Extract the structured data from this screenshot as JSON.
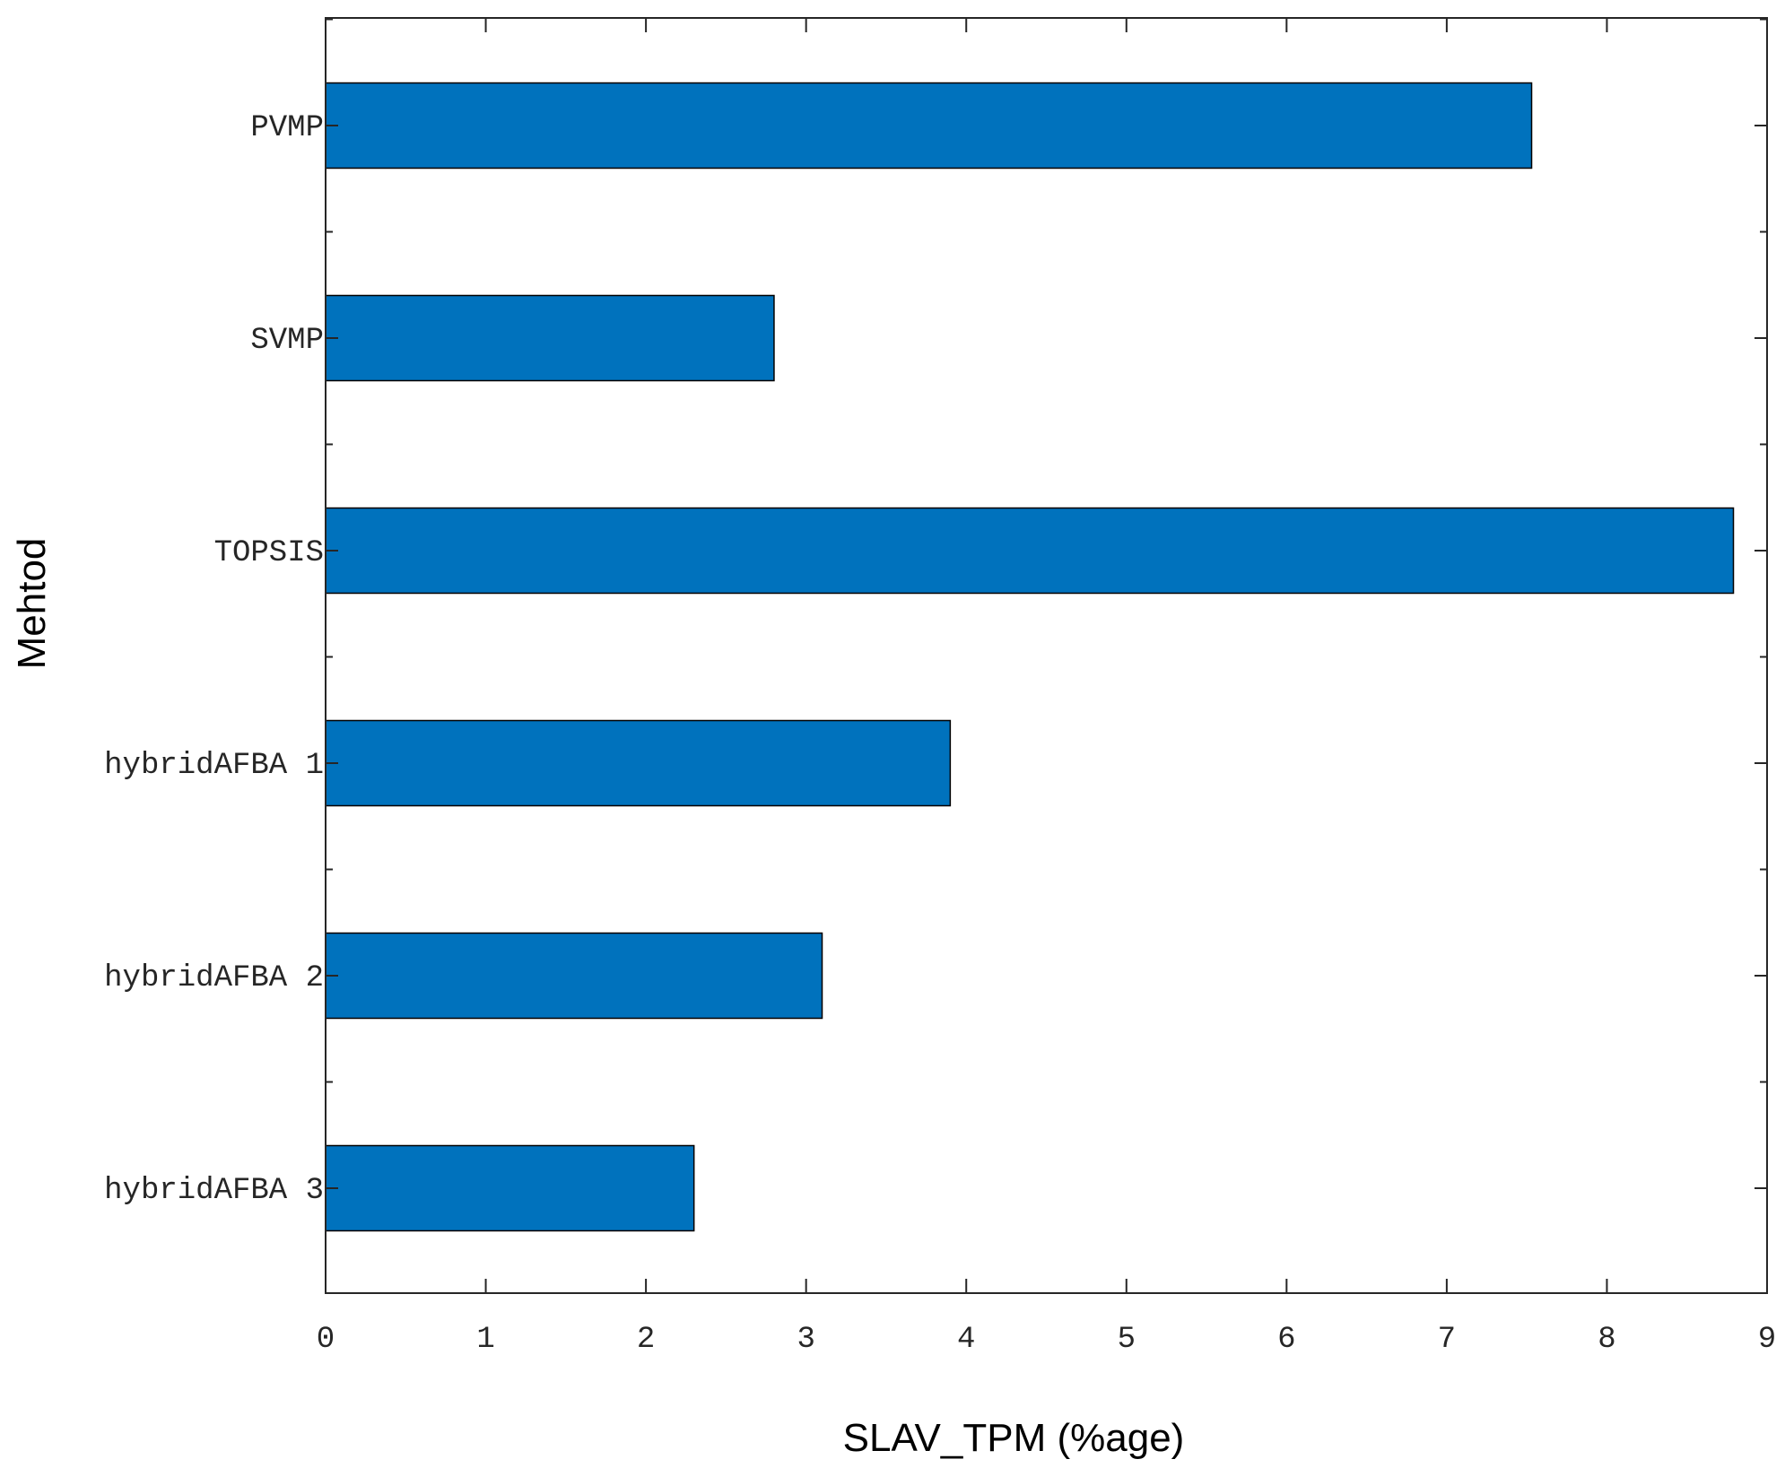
{
  "chart_data": {
    "type": "bar",
    "orientation": "horizontal",
    "categories": [
      "PVMP",
      "SVMP",
      "TOPSIS",
      "hybridAFBA 1",
      "hybridAFBA 2",
      "hybridAFBA 3"
    ],
    "values": [
      7.53,
      2.8,
      8.79,
      3.9,
      3.1,
      2.3
    ],
    "xlabel": "SLAV_TPM (%age)",
    "ylabel": "Mehtod",
    "xlim": [
      0,
      9
    ],
    "xticks": [
      "0",
      "1",
      "2",
      "3",
      "4",
      "5",
      "6",
      "7",
      "8",
      "9"
    ],
    "grid": false,
    "bar_color": "#0072BD",
    "edge_color": "#000000"
  }
}
